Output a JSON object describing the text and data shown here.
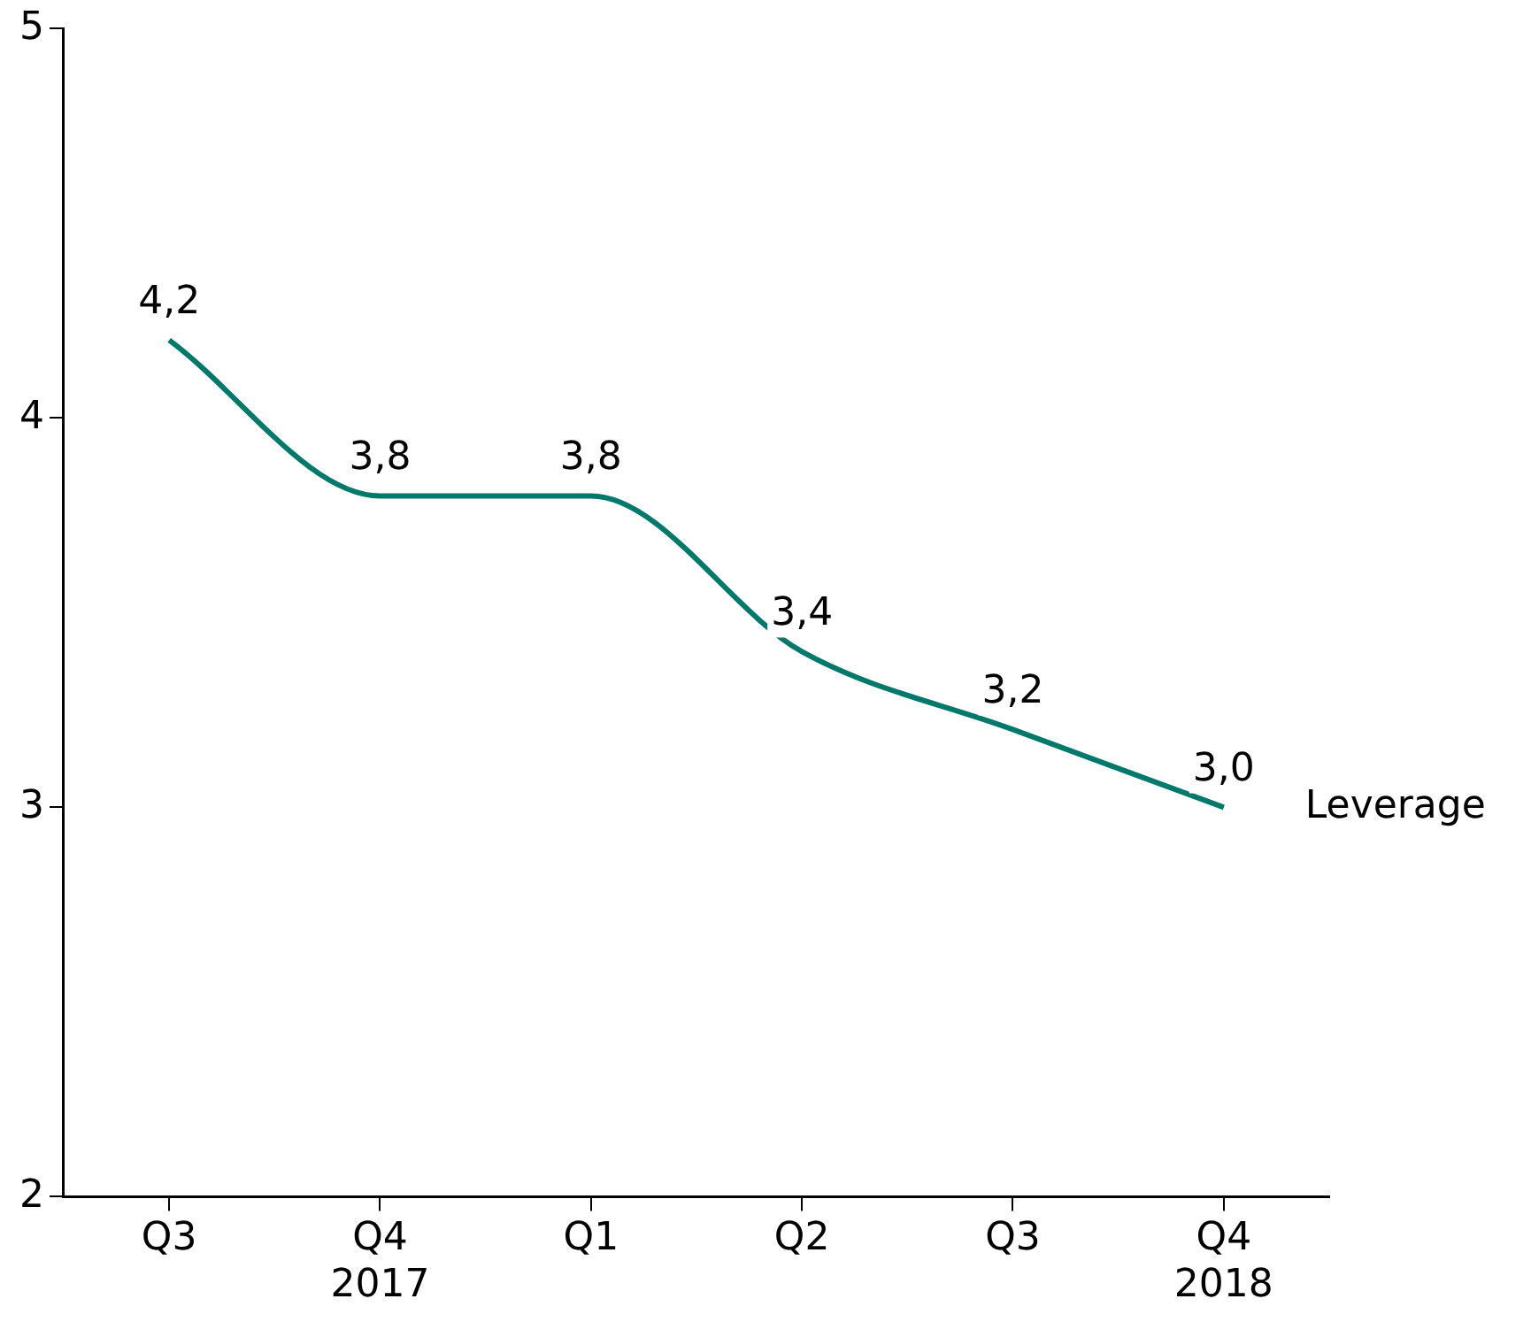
{
  "chart_data": {
    "type": "line",
    "categories": [
      "Q3",
      "Q4\n2017",
      "Q1",
      "Q2",
      "Q3",
      "Q4\n2018"
    ],
    "series": [
      {
        "name": "Leverage",
        "color": "#00796b",
        "values": [
          4.2,
          3.8,
          3.8,
          3.4,
          3.2,
          3.0
        ],
        "value_labels": [
          "4,2",
          "3,8",
          "3,8",
          "3,4",
          "3,2",
          "3,0"
        ]
      }
    ],
    "ylim": [
      2,
      5
    ],
    "yticks": [
      2,
      3,
      4,
      5
    ],
    "grid": false,
    "legend": false,
    "marker": "none",
    "line_style": "solid"
  }
}
